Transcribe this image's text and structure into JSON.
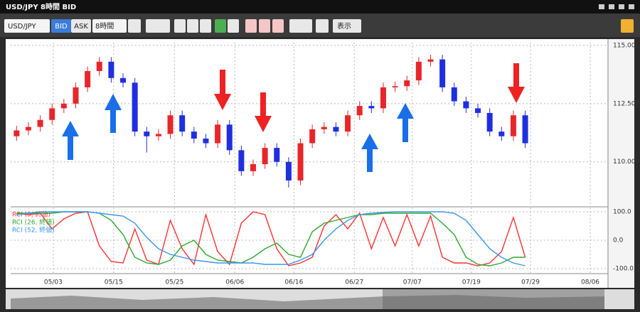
{
  "window": {
    "title": "USD/JPY 8時間 BID"
  },
  "toolbar": {
    "symbol": "USD/JPY",
    "bid": "BID",
    "ask": "ASK",
    "timeframe": "8時間",
    "display": "表示"
  },
  "chart_data": [
    {
      "type": "candlestick",
      "x": [
        1,
        3,
        5,
        7,
        9,
        11,
        13,
        15,
        17,
        19,
        21,
        23,
        25,
        27,
        29,
        31,
        33,
        35,
        37,
        39,
        41,
        43,
        45,
        47,
        49,
        51,
        53,
        55,
        57,
        59,
        61,
        63,
        65,
        67,
        69,
        71,
        73,
        75,
        77,
        79,
        81,
        83,
        85,
        87
      ],
      "open": [
        111.1,
        111.35,
        111.5,
        111.8,
        112.3,
        112.5,
        113.2,
        113.9,
        114.3,
        113.6,
        113.4,
        111.3,
        111.1,
        111.2,
        112.0,
        111.3,
        111.0,
        110.8,
        111.6,
        110.5,
        109.6,
        109.9,
        110.6,
        110.0,
        109.2,
        110.8,
        111.4,
        111.5,
        111.3,
        112.0,
        112.4,
        112.3,
        113.2,
        113.25,
        113.5,
        114.3,
        114.4,
        113.2,
        112.6,
        112.3,
        112.1,
        111.3,
        111.1,
        112.0
      ],
      "high": [
        111.55,
        111.7,
        112.0,
        112.5,
        112.7,
        113.4,
        114.1,
        114.5,
        114.5,
        113.8,
        113.6,
        111.5,
        111.4,
        112.2,
        112.2,
        111.5,
        111.2,
        111.8,
        111.8,
        110.7,
        110.1,
        110.8,
        110.8,
        110.2,
        111.0,
        111.6,
        111.7,
        111.7,
        112.2,
        112.6,
        112.6,
        113.4,
        113.45,
        113.7,
        114.5,
        114.6,
        114.6,
        113.4,
        112.8,
        112.5,
        112.3,
        111.5,
        112.2,
        112.2
      ],
      "low": [
        110.9,
        111.15,
        111.3,
        111.6,
        112.1,
        112.3,
        113.0,
        113.7,
        113.4,
        113.2,
        111.1,
        110.4,
        110.9,
        111.0,
        111.1,
        110.8,
        110.6,
        110.6,
        110.3,
        109.4,
        109.4,
        109.7,
        109.8,
        108.9,
        109.0,
        110.6,
        111.2,
        111.1,
        111.1,
        111.8,
        112.1,
        112.1,
        113.0,
        113.05,
        113.3,
        114.1,
        113.0,
        112.4,
        112.1,
        111.9,
        111.1,
        110.9,
        110.9,
        110.6
      ],
      "close": [
        111.35,
        111.5,
        111.8,
        112.3,
        112.5,
        113.2,
        113.9,
        114.3,
        113.6,
        113.4,
        111.3,
        111.1,
        111.2,
        112.0,
        111.3,
        111.0,
        110.8,
        111.6,
        110.5,
        109.6,
        109.9,
        110.6,
        110.0,
        109.2,
        110.8,
        111.4,
        111.5,
        111.3,
        112.0,
        112.4,
        112.3,
        113.2,
        113.25,
        113.5,
        114.3,
        114.4,
        113.2,
        112.6,
        112.3,
        112.1,
        111.3,
        111.1,
        112.0,
        110.8
      ],
      "up_color": "#e8262a",
      "down_color": "#1f2fe0",
      "xlim": [
        0,
        101
      ],
      "ylim": [
        108.1,
        115.12
      ],
      "yticks": [
        {
          "value": 115,
          "label": "115.000"
        },
        {
          "value": 112.5,
          "label": "112.500"
        },
        {
          "value": 110,
          "label": "110.000"
        }
      ],
      "grid": true
    },
    {
      "type": "line",
      "x": [
        1,
        3,
        5,
        7,
        9,
        11,
        13,
        15,
        17,
        19,
        21,
        23,
        25,
        27,
        29,
        31,
        33,
        35,
        37,
        39,
        41,
        43,
        45,
        47,
        49,
        51,
        53,
        55,
        57,
        59,
        61,
        63,
        65,
        67,
        69,
        71,
        73,
        75,
        77,
        79,
        81,
        83,
        85,
        87
      ],
      "series": [
        {
          "name": "RCI (9, 終値)",
          "color": "#ff3030",
          "values": [
            95,
            90,
            95,
            40,
            75,
            95,
            100,
            -20,
            -75,
            -80,
            40,
            -70,
            -85,
            70,
            -30,
            -85,
            90,
            -40,
            -85,
            60,
            100,
            90,
            -30,
            -90,
            -80,
            -60,
            50,
            90,
            40,
            95,
            -30,
            80,
            -20,
            90,
            -20,
            85,
            -60,
            -80,
            -80,
            -90,
            -80,
            -40,
            80,
            -60
          ]
        },
        {
          "name": "RCI (26, 終値)",
          "color": "#2ea82e",
          "values": [
            95,
            95,
            95,
            95,
            100,
            100,
            100,
            95,
            70,
            20,
            -60,
            -80,
            -85,
            -70,
            -20,
            0,
            -50,
            -70,
            -75,
            -80,
            -60,
            -30,
            -10,
            -50,
            -60,
            30,
            60,
            70,
            80,
            90,
            90,
            95,
            95,
            95,
            95,
            95,
            60,
            20,
            -60,
            -85,
            -90,
            -80,
            -60,
            -60
          ]
        },
        {
          "name": "RCI (52, 終値)",
          "color": "#3a96ee",
          "values": [
            90,
            95,
            100,
            100,
            100,
            100,
            100,
            95,
            90,
            85,
            60,
            10,
            -30,
            -50,
            -60,
            -70,
            -75,
            -80,
            -80,
            -80,
            -80,
            -85,
            -85,
            -85,
            -70,
            -50,
            0,
            40,
            70,
            90,
            95,
            98,
            100,
            100,
            100,
            100,
            100,
            95,
            70,
            20,
            -30,
            -60,
            -80,
            -90
          ]
        }
      ],
      "xlim": [
        0,
        101
      ],
      "ylim": [
        -117.5,
        115
      ],
      "xticks": [
        {
          "value": 7.2,
          "label": "05/03"
        },
        {
          "value": 17.4,
          "label": "05/15"
        },
        {
          "value": 27.7,
          "label": "05/25"
        },
        {
          "value": 37.9,
          "label": "06/06"
        },
        {
          "value": 47.9,
          "label": "06/16"
        },
        {
          "value": 58.1,
          "label": "06/27"
        },
        {
          "value": 67.9,
          "label": "07/07"
        },
        {
          "value": 77.9,
          "label": "07/19"
        },
        {
          "value": 87.9,
          "label": "07/29"
        },
        {
          "value": 98,
          "label": "08/06"
        }
      ],
      "yticks": [
        {
          "value": 100,
          "label": "100.0"
        },
        {
          "value": 0,
          "label": "0.0"
        },
        {
          "value": -100,
          "label": "-100.0"
        }
      ],
      "grid": true
    }
  ]
}
